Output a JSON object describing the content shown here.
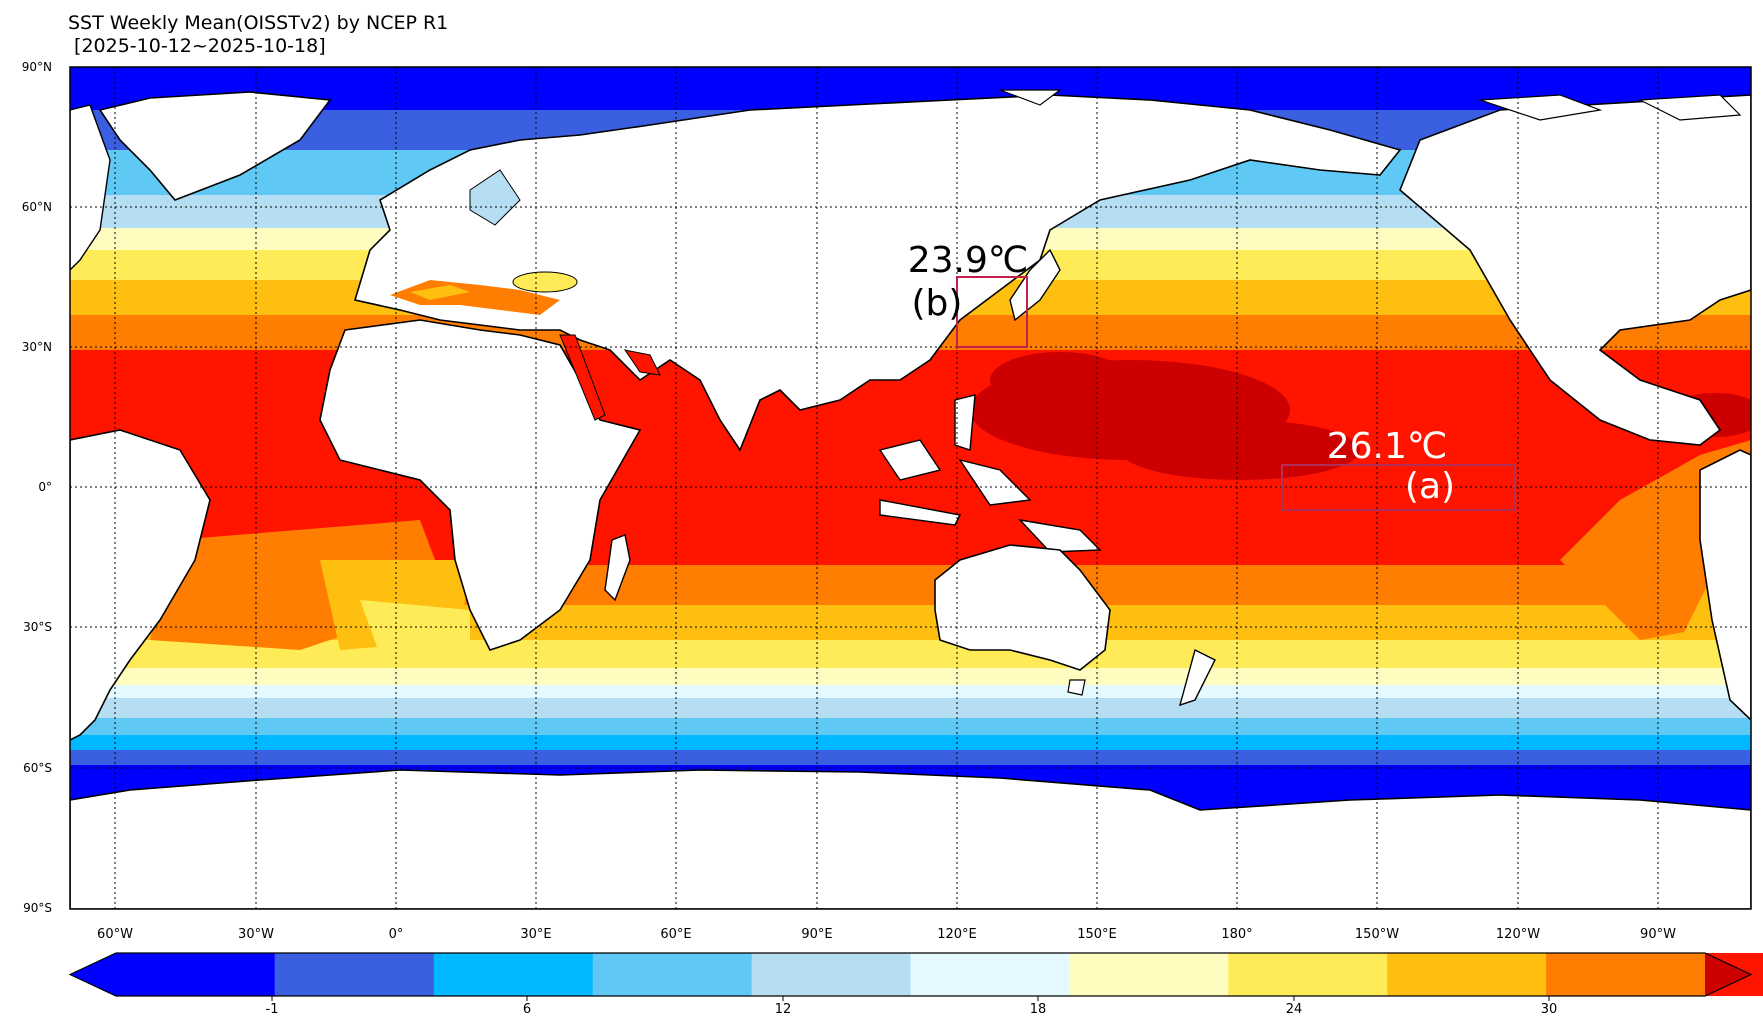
{
  "title": "SST Weekly Mean(OISSTv2) by NCEP R1",
  "subtitle": " [2025-10-12~2025-10-18]",
  "lat_labels": [
    "90°N",
    "60°N",
    "30°N",
    "0°",
    "30°S",
    "60°S",
    "90°S"
  ],
  "lon_labels": [
    "60°W",
    "30°W",
    "0°",
    "30°E",
    "60°E",
    "90°E",
    "120°E",
    "150°E",
    "180°",
    "150°W",
    "120°W",
    "90°W"
  ],
  "colorbar": {
    "colors": [
      "#0000ff",
      "#3a5fe0",
      "#00b8ff",
      "#5fc8f5",
      "#b5def2",
      "#e5faff",
      "#fffcc0",
      "#ffeb57",
      "#ffbf10",
      "#ff7d00",
      "#ff1400",
      "#cc0000"
    ],
    "tick_labels": [
      "-1",
      "6",
      "12",
      "18",
      "24",
      "30"
    ]
  },
  "annotations": {
    "a_value": "26.1℃",
    "a_label": "(a)",
    "b_value": "23.9℃",
    "b_label": "(b)"
  }
}
